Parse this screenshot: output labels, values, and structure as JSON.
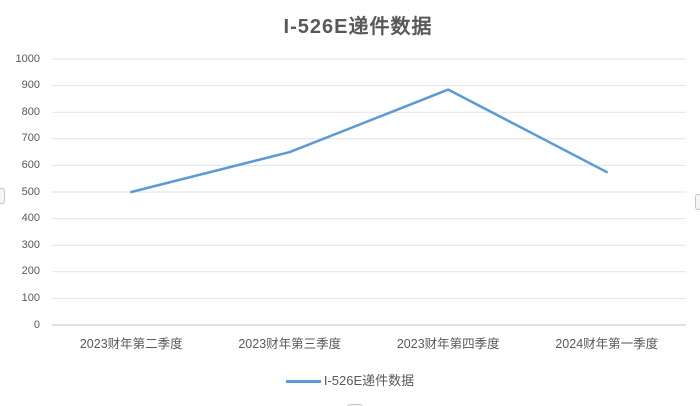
{
  "chart_data": {
    "type": "line",
    "title": "I-526E递件数据",
    "categories": [
      "2023财年第二季度",
      "2023财年第三季度",
      "2023财年第四季度",
      "2024财年第一季度"
    ],
    "series": [
      {
        "name": "I-526E递件数据",
        "values": [
          500,
          650,
          885,
          575
        ],
        "color": "#5B9BD5"
      }
    ],
    "xlabel": "",
    "ylabel": "",
    "ylim": [
      0,
      1000
    ],
    "ytick_step": 100,
    "grid": "horizontal",
    "legend_position": "bottom",
    "colors": {
      "series_line": "#5B9BD5",
      "text": "#595959",
      "gridline": "#e2e2e2",
      "axis_line": "#bfbfbf",
      "background": "#ffffff"
    }
  },
  "legend": {
    "label": "I-526E递件数据",
    "swatch_color": "#5B9BD5"
  }
}
